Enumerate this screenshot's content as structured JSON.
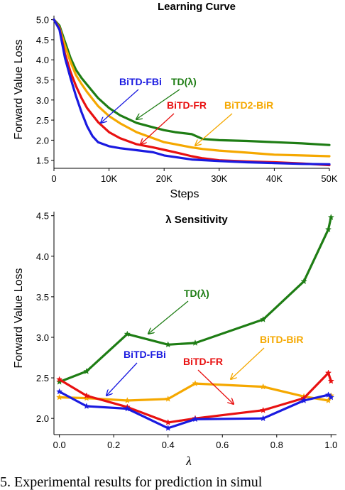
{
  "caption": "5. Experimental results for prediction in simul",
  "chart_data": [
    {
      "type": "line",
      "title": "Learning Curve",
      "xlabel": "Steps",
      "ylabel": "Forward Value Loss",
      "xlim": [
        0,
        50000
      ],
      "ylim": [
        1.3,
        5.1
      ],
      "xticks": [
        0,
        10000,
        20000,
        30000,
        40000,
        50000
      ],
      "xtick_labels": [
        "0",
        "10K",
        "20K",
        "30K",
        "40K",
        "50K"
      ],
      "yticks": [
        1.5,
        2.0,
        2.5,
        3.0,
        3.5,
        4.0,
        4.5,
        5.0
      ],
      "ytick_labels": [
        "1.5",
        "2.0",
        "2.5",
        "3.0",
        "3.5",
        "4.0",
        "4.5",
        "5.0"
      ],
      "grid": false,
      "series": [
        {
          "name": "TD(λ)",
          "color": "#1e7d14",
          "x": [
            0,
            1000,
            2000,
            3000,
            4000,
            5000,
            6000,
            8000,
            10000,
            12000,
            15000,
            18000,
            20000,
            22000,
            25000,
            27000,
            30000,
            35000,
            40000,
            45000,
            50000
          ],
          "values": [
            5.0,
            4.85,
            4.45,
            4.05,
            3.75,
            3.55,
            3.38,
            3.05,
            2.8,
            2.62,
            2.43,
            2.32,
            2.25,
            2.2,
            2.15,
            2.03,
            2.0,
            1.98,
            1.95,
            1.92,
            1.88
          ]
        },
        {
          "name": "BiTD2-BiR",
          "color": "#f5a800",
          "x": [
            0,
            1000,
            2000,
            3000,
            4000,
            5000,
            6000,
            8000,
            10000,
            12000,
            15000,
            18000,
            20000,
            22000,
            25000,
            27000,
            30000,
            35000,
            40000,
            45000,
            50000
          ],
          "values": [
            5.0,
            4.8,
            4.35,
            3.95,
            3.62,
            3.4,
            3.2,
            2.85,
            2.6,
            2.42,
            2.2,
            2.05,
            1.95,
            1.9,
            1.82,
            1.78,
            1.74,
            1.69,
            1.64,
            1.62,
            1.6
          ]
        },
        {
          "name": "BiTD-FR",
          "color": "#e81111",
          "x": [
            0,
            1000,
            2000,
            3000,
            4000,
            5000,
            6000,
            8000,
            10000,
            12000,
            15000,
            18000,
            20000,
            22000,
            25000,
            27000,
            30000,
            35000,
            40000,
            45000,
            50000
          ],
          "values": [
            5.0,
            4.78,
            4.15,
            3.7,
            3.35,
            3.05,
            2.8,
            2.45,
            2.2,
            2.05,
            1.9,
            1.82,
            1.76,
            1.7,
            1.6,
            1.55,
            1.5,
            1.47,
            1.45,
            1.42,
            1.38
          ]
        },
        {
          "name": "BiTD-FBi",
          "color": "#1a1ae0",
          "x": [
            0,
            1000,
            2000,
            3000,
            4000,
            5000,
            6000,
            7000,
            8000,
            10000,
            12000,
            15000,
            18000,
            20000,
            25000,
            30000,
            35000,
            40000,
            45000,
            50000
          ],
          "values": [
            5.0,
            4.75,
            4.05,
            3.55,
            3.1,
            2.7,
            2.35,
            2.1,
            1.95,
            1.85,
            1.8,
            1.75,
            1.7,
            1.62,
            1.52,
            1.48,
            1.45,
            1.43,
            1.41,
            1.4
          ]
        }
      ],
      "annotations": [
        {
          "text": "BiTD-FBi",
          "series": "BiTD-FBi"
        },
        {
          "text": "TD(λ)",
          "series": "TD(λ)"
        },
        {
          "text": "BiTD-FR",
          "series": "BiTD-FR"
        },
        {
          "text": "BiTD2-BiR",
          "series": "BiTD2-BiR"
        }
      ]
    },
    {
      "type": "line",
      "title": "λ Sensitivity",
      "xlabel": "λ",
      "ylabel": "Forward Value Loss",
      "xlim": [
        -0.02,
        1.02
      ],
      "ylim": [
        1.8,
        4.55
      ],
      "xticks": [
        0.0,
        0.2,
        0.4,
        0.6,
        0.8,
        1.0
      ],
      "xtick_labels": [
        "0.0",
        "0.2",
        "0.4",
        "0.6",
        "0.8",
        "1.0"
      ],
      "yticks": [
        2.0,
        2.5,
        3.0,
        3.5,
        4.0,
        4.5
      ],
      "ytick_labels": [
        "2.0",
        "2.5",
        "3.0",
        "3.5",
        "4.0",
        "4.5"
      ],
      "grid": false,
      "marker": "star",
      "series": [
        {
          "name": "TD(λ)",
          "color": "#1e7d14",
          "x": [
            0.0,
            0.1,
            0.25,
            0.4,
            0.5,
            0.75,
            0.9,
            0.99,
            1.0
          ],
          "values": [
            2.45,
            2.58,
            3.04,
            2.91,
            2.93,
            3.22,
            3.69,
            4.33,
            4.48
          ]
        },
        {
          "name": "BiTD-BiR",
          "color": "#f5a800",
          "x": [
            0.0,
            0.1,
            0.25,
            0.4,
            0.5,
            0.75,
            0.9,
            0.99,
            1.0
          ],
          "values": [
            2.26,
            2.25,
            2.22,
            2.24,
            2.43,
            2.39,
            2.27,
            2.22,
            2.28
          ]
        },
        {
          "name": "BiTD-FR",
          "color": "#e81111",
          "x": [
            0.0,
            0.1,
            0.25,
            0.4,
            0.5,
            0.75,
            0.9,
            0.99,
            1.0
          ],
          "values": [
            2.48,
            2.28,
            2.14,
            1.95,
            2.0,
            2.1,
            2.25,
            2.56,
            2.46
          ]
        },
        {
          "name": "BiTD-FBi",
          "color": "#1a1ae0",
          "x": [
            0.0,
            0.1,
            0.25,
            0.4,
            0.5,
            0.75,
            0.9,
            0.99,
            1.0
          ],
          "values": [
            2.33,
            2.15,
            2.12,
            1.88,
            1.99,
            2.0,
            2.22,
            2.29,
            2.26
          ]
        }
      ],
      "annotations": [
        {
          "text": "TD(λ)",
          "series": "TD(λ)"
        },
        {
          "text": "BiTD-BiR",
          "series": "BiTD-BiR"
        },
        {
          "text": "BiTD-FBi",
          "series": "BiTD-FBi"
        },
        {
          "text": "BiTD-FR",
          "series": "BiTD-FR"
        }
      ]
    }
  ]
}
